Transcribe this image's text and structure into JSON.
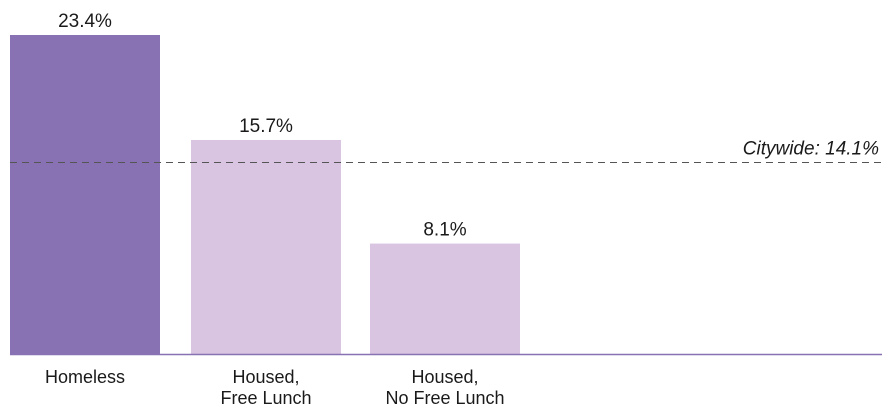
{
  "chart_data": {
    "type": "bar",
    "categories": [
      [
        "Homeless"
      ],
      [
        "Housed,",
        "Free Lunch"
      ],
      [
        "Housed,",
        "No Free Lunch"
      ]
    ],
    "values": [
      23.4,
      15.7,
      8.1
    ],
    "value_labels": [
      "23.4%",
      "15.7%",
      "8.1%"
    ],
    "bar_colors": [
      "#8872b3",
      "#d9c4e1",
      "#d9c4e1"
    ],
    "reference_line": {
      "value": 14.1,
      "label": "Citywide: 14.1%",
      "style": "dashed",
      "color": "#555555"
    },
    "axis_color": "#8872b3",
    "ylim": [
      0,
      23.4
    ],
    "title": "",
    "xlabel": "",
    "ylabel": "",
    "grid": false,
    "legend": "none"
  }
}
